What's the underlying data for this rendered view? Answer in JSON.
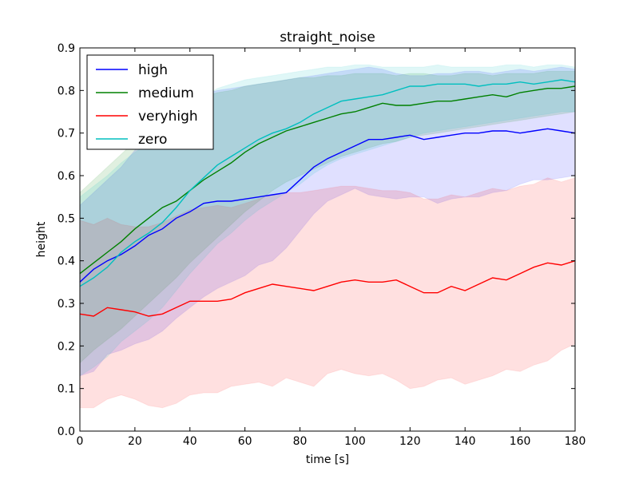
{
  "chart_data": {
    "type": "line",
    "title": "straight_noise",
    "xlabel": "time [s]",
    "ylabel": "height",
    "xlim": [
      0,
      180
    ],
    "ylim": [
      0,
      0.9
    ],
    "xticks": [
      "0",
      "20",
      "40",
      "60",
      "80",
      "100",
      "120",
      "140",
      "160",
      "180"
    ],
    "yticks": [
      "0.0",
      "0.1",
      "0.2",
      "0.3",
      "0.4",
      "0.5",
      "0.6",
      "0.7",
      "0.8",
      "0.9"
    ],
    "legend_position": "top-left",
    "grid": false,
    "x": [
      0,
      5,
      10,
      15,
      20,
      25,
      30,
      35,
      40,
      45,
      50,
      55,
      60,
      65,
      70,
      75,
      80,
      85,
      90,
      95,
      100,
      105,
      110,
      115,
      120,
      125,
      130,
      135,
      140,
      145,
      150,
      155,
      160,
      165,
      170,
      175,
      180
    ],
    "series": [
      {
        "name": "high",
        "color": "#0000ff",
        "values": [
          0.35,
          0.38,
          0.4,
          0.415,
          0.435,
          0.46,
          0.475,
          0.5,
          0.515,
          0.535,
          0.54,
          0.54,
          0.545,
          0.55,
          0.555,
          0.56,
          0.59,
          0.62,
          0.64,
          0.655,
          0.67,
          0.685,
          0.685,
          0.69,
          0.695,
          0.685,
          0.69,
          0.695,
          0.7,
          0.7,
          0.705,
          0.705,
          0.7,
          0.705,
          0.71,
          0.705,
          0.7
        ],
        "lower": [
          0.13,
          0.14,
          0.18,
          0.19,
          0.205,
          0.215,
          0.235,
          0.265,
          0.29,
          0.315,
          0.335,
          0.35,
          0.365,
          0.39,
          0.4,
          0.43,
          0.47,
          0.51,
          0.54,
          0.555,
          0.57,
          0.555,
          0.55,
          0.545,
          0.55,
          0.55,
          0.535,
          0.545,
          0.55,
          0.55,
          0.56,
          0.565,
          0.58,
          0.59,
          0.59,
          0.595,
          0.6
        ],
        "upper": [
          0.53,
          0.56,
          0.59,
          0.62,
          0.66,
          0.69,
          0.72,
          0.745,
          0.77,
          0.79,
          0.8,
          0.805,
          0.81,
          0.815,
          0.82,
          0.825,
          0.83,
          0.835,
          0.84,
          0.845,
          0.85,
          0.855,
          0.85,
          0.84,
          0.835,
          0.835,
          0.84,
          0.84,
          0.845,
          0.845,
          0.84,
          0.845,
          0.85,
          0.845,
          0.85,
          0.855,
          0.85
        ]
      },
      {
        "name": "medium",
        "color": "#008000",
        "values": [
          0.37,
          0.395,
          0.42,
          0.445,
          0.475,
          0.5,
          0.525,
          0.54,
          0.565,
          0.59,
          0.61,
          0.63,
          0.655,
          0.675,
          0.69,
          0.705,
          0.715,
          0.725,
          0.735,
          0.745,
          0.75,
          0.76,
          0.77,
          0.765,
          0.765,
          0.77,
          0.775,
          0.775,
          0.78,
          0.785,
          0.79,
          0.785,
          0.795,
          0.8,
          0.805,
          0.805,
          0.81
        ],
        "lower": [
          0.16,
          0.19,
          0.215,
          0.24,
          0.27,
          0.3,
          0.33,
          0.36,
          0.395,
          0.425,
          0.455,
          0.485,
          0.515,
          0.54,
          0.565,
          0.585,
          0.6,
          0.615,
          0.63,
          0.645,
          0.655,
          0.665,
          0.675,
          0.68,
          0.69,
          0.695,
          0.7,
          0.705,
          0.71,
          0.715,
          0.72,
          0.725,
          0.73,
          0.735,
          0.74,
          0.745,
          0.75
        ],
        "upper": [
          0.56,
          0.59,
          0.62,
          0.65,
          0.68,
          0.71,
          0.735,
          0.755,
          0.77,
          0.785,
          0.795,
          0.8,
          0.81,
          0.815,
          0.82,
          0.825,
          0.83,
          0.83,
          0.835,
          0.835,
          0.84,
          0.84,
          0.84,
          0.835,
          0.84,
          0.84,
          0.835,
          0.835,
          0.84,
          0.84,
          0.835,
          0.84,
          0.84,
          0.84,
          0.845,
          0.845,
          0.845
        ]
      },
      {
        "name": "veryhigh",
        "color": "#ff0000",
        "values": [
          0.275,
          0.27,
          0.29,
          0.285,
          0.28,
          0.27,
          0.275,
          0.29,
          0.305,
          0.305,
          0.305,
          0.31,
          0.325,
          0.335,
          0.345,
          0.34,
          0.335,
          0.33,
          0.34,
          0.35,
          0.355,
          0.35,
          0.35,
          0.355,
          0.34,
          0.325,
          0.325,
          0.34,
          0.33,
          0.345,
          0.36,
          0.355,
          0.37,
          0.385,
          0.395,
          0.39,
          0.4
        ],
        "lower": [
          0.055,
          0.055,
          0.075,
          0.085,
          0.075,
          0.06,
          0.055,
          0.065,
          0.085,
          0.09,
          0.09,
          0.105,
          0.11,
          0.115,
          0.105,
          0.125,
          0.115,
          0.105,
          0.135,
          0.145,
          0.135,
          0.13,
          0.135,
          0.12,
          0.1,
          0.105,
          0.12,
          0.125,
          0.11,
          0.12,
          0.13,
          0.145,
          0.14,
          0.155,
          0.165,
          0.19,
          0.205
        ],
        "upper": [
          0.495,
          0.485,
          0.5,
          0.485,
          0.48,
          0.48,
          0.49,
          0.505,
          0.52,
          0.525,
          0.53,
          0.525,
          0.535,
          0.545,
          0.555,
          0.56,
          0.56,
          0.565,
          0.57,
          0.575,
          0.575,
          0.57,
          0.565,
          0.565,
          0.56,
          0.545,
          0.545,
          0.555,
          0.55,
          0.56,
          0.57,
          0.565,
          0.575,
          0.58,
          0.595,
          0.585,
          0.595
        ]
      },
      {
        "name": "zero",
        "color": "#00bfbf",
        "values": [
          0.34,
          0.36,
          0.385,
          0.42,
          0.445,
          0.465,
          0.49,
          0.525,
          0.565,
          0.595,
          0.625,
          0.645,
          0.665,
          0.685,
          0.7,
          0.71,
          0.725,
          0.745,
          0.76,
          0.775,
          0.78,
          0.785,
          0.79,
          0.8,
          0.81,
          0.81,
          0.815,
          0.815,
          0.815,
          0.81,
          0.815,
          0.815,
          0.82,
          0.815,
          0.82,
          0.825,
          0.82
        ],
        "lower": [
          0.13,
          0.15,
          0.175,
          0.21,
          0.235,
          0.26,
          0.29,
          0.33,
          0.37,
          0.405,
          0.44,
          0.465,
          0.495,
          0.52,
          0.54,
          0.56,
          0.58,
          0.605,
          0.625,
          0.64,
          0.65,
          0.66,
          0.67,
          0.68,
          0.69,
          0.7,
          0.705,
          0.71,
          0.715,
          0.72,
          0.725,
          0.73,
          0.735,
          0.74,
          0.745,
          0.75,
          0.75
        ],
        "upper": [
          0.55,
          0.575,
          0.6,
          0.63,
          0.655,
          0.675,
          0.695,
          0.72,
          0.76,
          0.785,
          0.805,
          0.815,
          0.825,
          0.83,
          0.835,
          0.84,
          0.845,
          0.85,
          0.855,
          0.855,
          0.86,
          0.86,
          0.855,
          0.855,
          0.855,
          0.855,
          0.86,
          0.855,
          0.855,
          0.855,
          0.855,
          0.86,
          0.86,
          0.855,
          0.86,
          0.86,
          0.855
        ]
      }
    ]
  }
}
